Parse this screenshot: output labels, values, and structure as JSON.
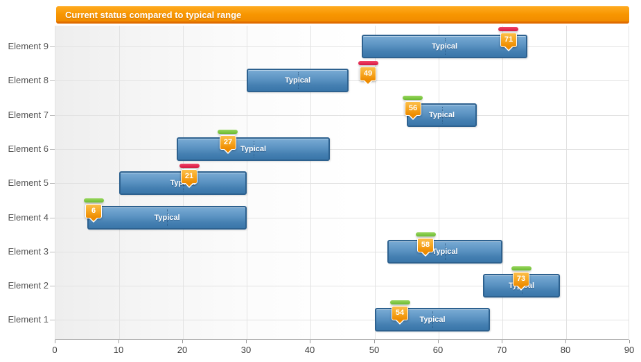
{
  "title": "Current status compared to typical range",
  "chart_data": {
    "type": "bar",
    "subtype": "horizontal-range-bars-with-current-value-markers",
    "title": "Current status compared to typical range",
    "bar_label": "Typical",
    "legend_position": "none",
    "grid": true,
    "x_axis": {
      "min": 0,
      "max": 90,
      "tick_interval": 10,
      "ticks": [
        0,
        10,
        20,
        30,
        40,
        50,
        60,
        70,
        80,
        90
      ]
    },
    "categories": [
      "Element 9",
      "Element 8",
      "Element 7",
      "Element 6",
      "Element 5",
      "Element 4",
      "Element 3",
      "Element 2",
      "Element 1"
    ],
    "rows": [
      {
        "label": "Element 9",
        "typical_min": 48,
        "typical_max": 74,
        "current": 71,
        "status_tick": "red"
      },
      {
        "label": "Element 8",
        "typical_min": 30,
        "typical_max": 46,
        "current": 49,
        "status_tick": "red"
      },
      {
        "label": "Element 7",
        "typical_min": 55,
        "typical_max": 66,
        "current": 56,
        "status_tick": "green"
      },
      {
        "label": "Element 6",
        "typical_min": 19,
        "typical_max": 43,
        "current": 27,
        "status_tick": "green"
      },
      {
        "label": "Element 5",
        "typical_min": 10,
        "typical_max": 30,
        "current": 21,
        "status_tick": "red"
      },
      {
        "label": "Element 4",
        "typical_min": 5,
        "typical_max": 30,
        "current": 6,
        "status_tick": "green"
      },
      {
        "label": "Element 3",
        "typical_min": 52,
        "typical_max": 70,
        "current": 58,
        "status_tick": "green"
      },
      {
        "label": "Element 2",
        "typical_min": 67,
        "typical_max": 79,
        "current": 73,
        "status_tick": "green"
      },
      {
        "label": "Element 1",
        "typical_min": 50,
        "typical_max": 68,
        "current": 54,
        "status_tick": "green"
      }
    ],
    "colors": {
      "title_bar_top": "#ffab20",
      "title_bar_bottom": "#f18c00",
      "title_bar_border": "#e06c00",
      "bar_top": "#79abd4",
      "bar_bottom": "#3a76a9",
      "bar_border": "#2d618f",
      "badge_top": "#fcbf4b",
      "badge_bottom": "#ee8b00",
      "tick_red": "#d61741",
      "tick_green": "#6bbb32",
      "grid": "#e2e2e2",
      "axis_line": "#b3b3b3",
      "axis_text": "#3c3c3c",
      "category_text": "#565656"
    }
  }
}
